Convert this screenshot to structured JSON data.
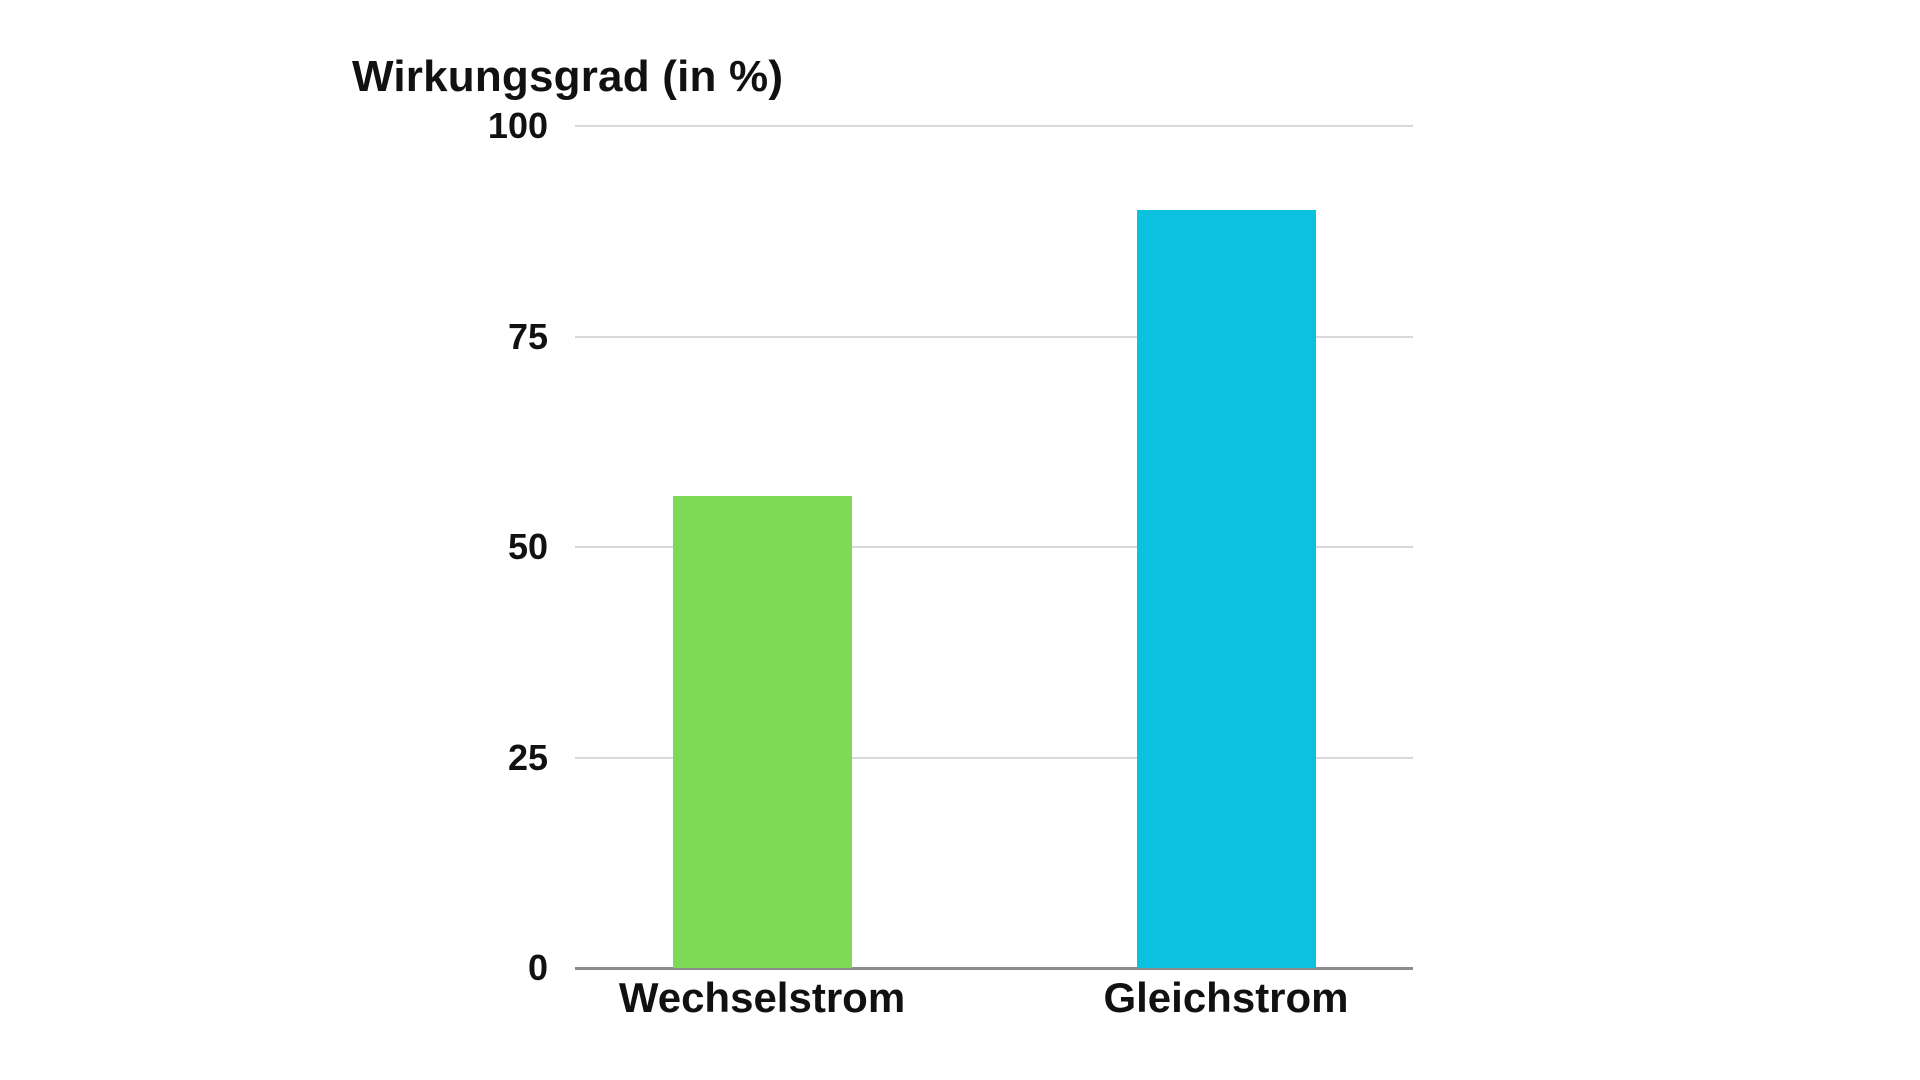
{
  "chart_data": {
    "type": "bar",
    "title": "Wirkungsgrad (in %)",
    "categories": [
      "Wechselstrom",
      "Gleichstrom"
    ],
    "values": [
      56,
      90
    ],
    "series": [
      {
        "name": "Wirkungsgrad",
        "values": [
          56,
          90
        ]
      }
    ],
    "bar_colors": [
      "#7ED957",
      "#0CC0DF"
    ],
    "xlabel": "",
    "ylabel": "Wirkungsgrad (in %)",
    "ylim": [
      0,
      100
    ],
    "yticks": [
      0,
      25,
      50,
      75,
      100
    ],
    "grid": "horizontal",
    "legend": "none",
    "background_color": "#ffffff",
    "gridline_color": "#d9d9d9",
    "baseline_color": "#8c8c8c",
    "text_color": "#111111"
  }
}
